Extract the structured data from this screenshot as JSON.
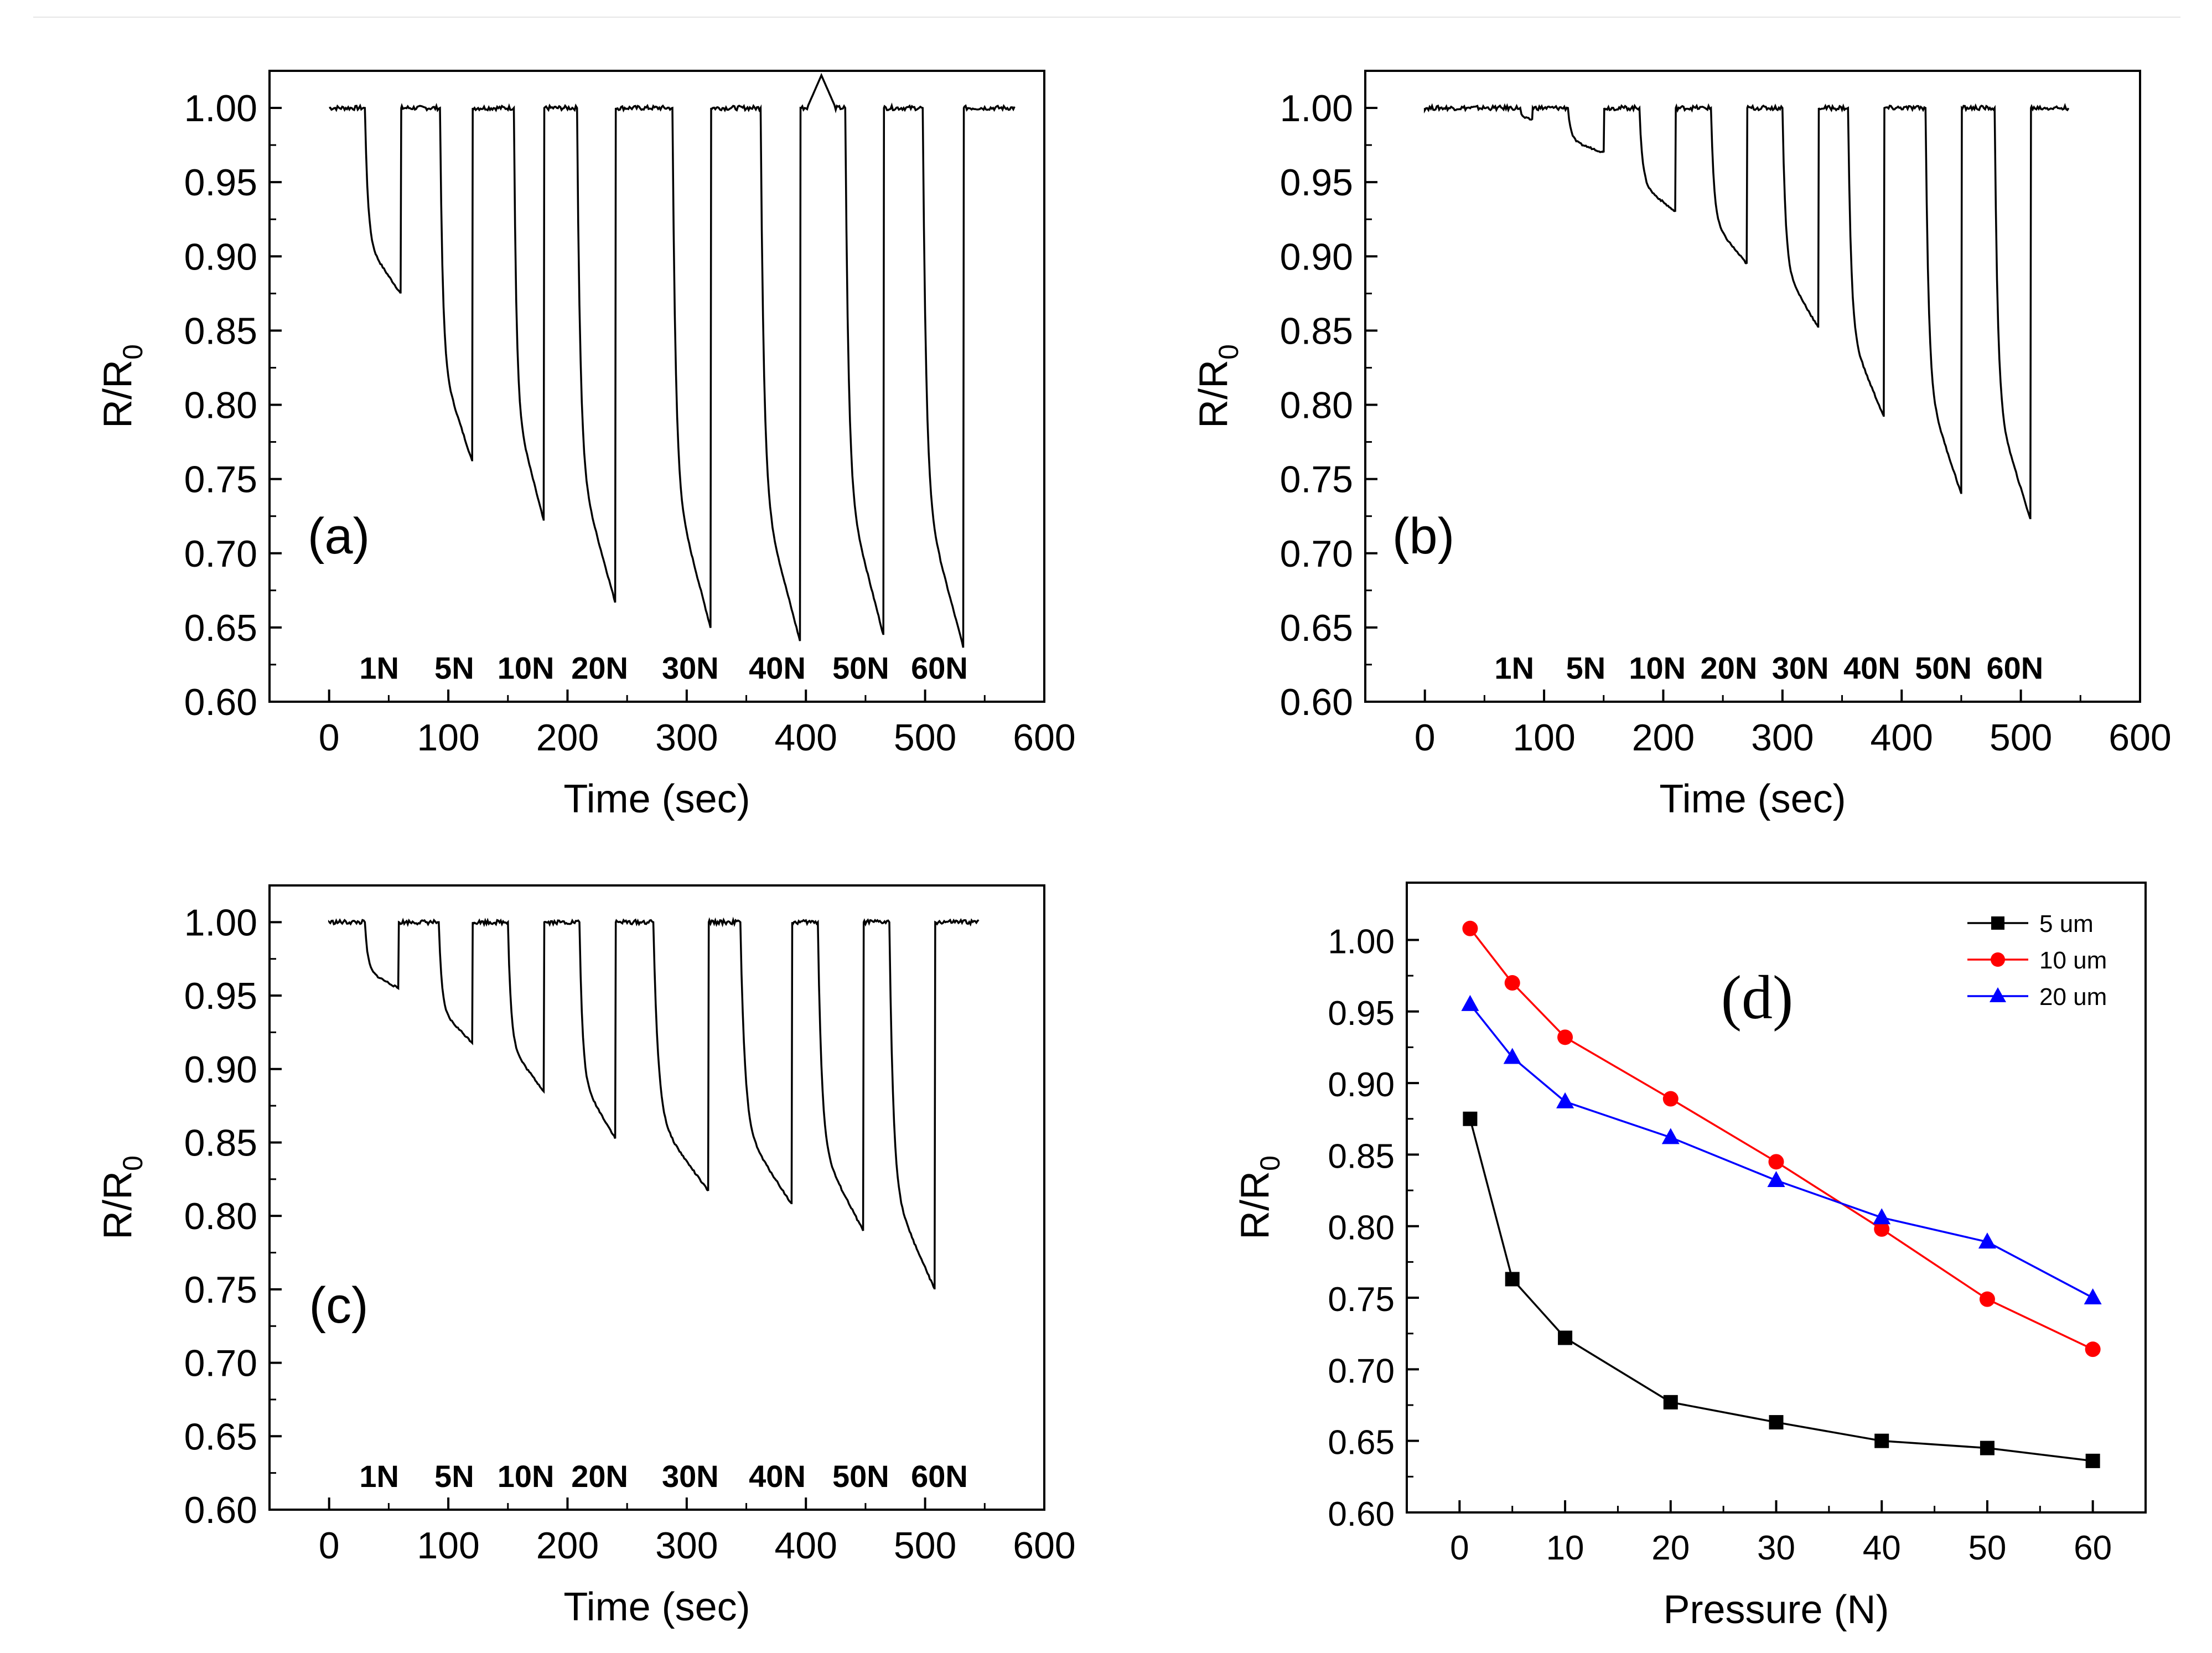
{
  "chart_data": [
    {
      "type": "line",
      "panel_label": "(a)",
      "xlabel": "Time (sec)",
      "ylabel": "R/R0",
      "xlim": [
        -50,
        600
      ],
      "ylim": [
        0.6,
        1.025
      ],
      "xticks": [
        0,
        100,
        200,
        300,
        400,
        500,
        600
      ],
      "xtick_labels": [
        "0",
        "100",
        "200",
        "300",
        "400",
        "500",
        "600"
      ],
      "yticks": [
        0.6,
        0.65,
        0.7,
        0.75,
        0.8,
        0.85,
        0.9,
        0.95,
        1.0
      ],
      "ytick_labels": [
        "0.60",
        "0.65",
        "0.70",
        "0.75",
        "0.80",
        "0.85",
        "0.90",
        "0.95",
        "1.00"
      ],
      "line_end_x": 575,
      "baseline": 1.0,
      "force_labels": [
        {
          "text": "1N",
          "x": 42
        },
        {
          "text": "5N",
          "x": 105
        },
        {
          "text": "10N",
          "x": 165
        },
        {
          "text": "20N",
          "x": 227
        },
        {
          "text": "30N",
          "x": 303
        },
        {
          "text": "40N",
          "x": 376
        },
        {
          "text": "50N",
          "x": 446
        },
        {
          "text": "60N",
          "x": 512
        }
      ],
      "force_label_y": 0.623,
      "cycles": [
        {
          "start": 30,
          "end": 60,
          "min": 0.875
        },
        {
          "start": 93,
          "end": 120,
          "min": 0.762
        },
        {
          "start": 155,
          "end": 180,
          "min": 0.722
        },
        {
          "start": 208,
          "end": 240,
          "min": 0.667
        },
        {
          "start": 288,
          "end": 320,
          "min": 0.65
        },
        {
          "start": 362,
          "end": 395,
          "min": 0.641
        },
        {
          "start": 433,
          "end": 465,
          "min": 0.645
        },
        {
          "start": 498,
          "end": 532,
          "min": 0.637
        }
      ],
      "overshoot": {
        "x": 413,
        "y": 1.022
      }
    },
    {
      "type": "line",
      "panel_label": "(b)",
      "xlabel": "Time (sec)",
      "ylabel": "R/R0",
      "xlim": [
        -50,
        600
      ],
      "ylim": [
        0.6,
        1.025
      ],
      "xticks": [
        0,
        100,
        200,
        300,
        400,
        500,
        600
      ],
      "xtick_labels": [
        "0",
        "100",
        "200",
        "300",
        "400",
        "500",
        "600"
      ],
      "yticks": [
        0.6,
        0.65,
        0.7,
        0.75,
        0.8,
        0.85,
        0.9,
        0.95,
        1.0
      ],
      "ytick_labels": [
        "0.60",
        "0.65",
        "0.70",
        "0.75",
        "0.80",
        "0.85",
        "0.90",
        "0.95",
        "1.00"
      ],
      "line_end_x": 540,
      "baseline": 1.0,
      "force_labels": [
        {
          "text": "1N",
          "x": 75
        },
        {
          "text": "5N",
          "x": 135
        },
        {
          "text": "10N",
          "x": 195
        },
        {
          "text": "20N",
          "x": 255
        },
        {
          "text": "30N",
          "x": 315
        },
        {
          "text": "40N",
          "x": 375
        },
        {
          "text": "50N",
          "x": 435
        },
        {
          "text": "60N",
          "x": 495
        }
      ],
      "force_label_y": 0.623,
      "cycles": [
        {
          "start": 80,
          "end": 90,
          "min": 0.992
        },
        {
          "start": 120,
          "end": 150,
          "min": 0.97
        },
        {
          "start": 180,
          "end": 210,
          "min": 0.93
        },
        {
          "start": 240,
          "end": 270,
          "min": 0.895
        },
        {
          "start": 300,
          "end": 330,
          "min": 0.852
        },
        {
          "start": 355,
          "end": 385,
          "min": 0.792
        },
        {
          "start": 420,
          "end": 450,
          "min": 0.74
        },
        {
          "start": 478,
          "end": 508,
          "min": 0.723
        }
      ]
    },
    {
      "type": "line",
      "panel_label": "(c)",
      "xlabel": "Time (sec)",
      "ylabel": "R/R0",
      "xlim": [
        -50,
        600
      ],
      "ylim": [
        0.6,
        1.025
      ],
      "xticks": [
        0,
        100,
        200,
        300,
        400,
        500,
        600
      ],
      "xtick_labels": [
        "0",
        "100",
        "200",
        "300",
        "400",
        "500",
        "600"
      ],
      "yticks": [
        0.6,
        0.65,
        0.7,
        0.75,
        0.8,
        0.85,
        0.9,
        0.95,
        1.0
      ],
      "ytick_labels": [
        "0.60",
        "0.65",
        "0.70",
        "0.75",
        "0.80",
        "0.85",
        "0.90",
        "0.95",
        "1.00"
      ],
      "line_end_x": 545,
      "baseline": 1.0,
      "force_labels": [
        {
          "text": "1N",
          "x": 42
        },
        {
          "text": "5N",
          "x": 105
        },
        {
          "text": "10N",
          "x": 165
        },
        {
          "text": "20N",
          "x": 227
        },
        {
          "text": "30N",
          "x": 303
        },
        {
          "text": "40N",
          "x": 376
        },
        {
          "text": "50N",
          "x": 446
        },
        {
          "text": "60N",
          "x": 512
        }
      ],
      "force_label_y": 0.623,
      "cycles": [
        {
          "start": 30,
          "end": 58,
          "min": 0.955
        },
        {
          "start": 92,
          "end": 120,
          "min": 0.918
        },
        {
          "start": 150,
          "end": 180,
          "min": 0.885
        },
        {
          "start": 210,
          "end": 240,
          "min": 0.853
        },
        {
          "start": 272,
          "end": 318,
          "min": 0.817
        },
        {
          "start": 345,
          "end": 388,
          "min": 0.808
        },
        {
          "start": 410,
          "end": 448,
          "min": 0.79
        },
        {
          "start": 470,
          "end": 508,
          "min": 0.75
        }
      ]
    },
    {
      "type": "line",
      "panel_label": "(d)",
      "xlabel": "Pressure (N)",
      "ylabel": "R/R0",
      "xlim": [
        -5,
        65
      ],
      "ylim": [
        0.6,
        1.04
      ],
      "xticks": [
        0,
        10,
        20,
        30,
        40,
        50,
        60
      ],
      "xtick_labels": [
        "0",
        "10",
        "20",
        "30",
        "40",
        "50",
        "60"
      ],
      "yticks": [
        0.6,
        0.65,
        0.7,
        0.75,
        0.8,
        0.85,
        0.9,
        0.95,
        1.0
      ],
      "ytick_labels": [
        "0.60",
        "0.65",
        "0.70",
        "0.75",
        "0.80",
        "0.85",
        "0.90",
        "0.95",
        "1.00"
      ],
      "x": [
        1,
        5,
        10,
        20,
        30,
        40,
        50,
        60
      ],
      "series": [
        {
          "name": "5 um",
          "color": "#000000",
          "marker": "square",
          "values": [
            0.875,
            0.763,
            0.722,
            0.677,
            0.663,
            0.65,
            0.645,
            0.636
          ]
        },
        {
          "name": "10 um",
          "color": "#ff0000",
          "marker": "circle",
          "values": [
            1.008,
            0.97,
            0.932,
            0.889,
            0.845,
            0.798,
            0.749,
            0.714
          ]
        },
        {
          "name": "20 um",
          "color": "#0000ff",
          "marker": "triangle",
          "values": [
            0.955,
            0.918,
            0.887,
            0.862,
            0.832,
            0.806,
            0.789,
            0.75
          ]
        }
      ],
      "legend_position": "top-right"
    }
  ]
}
